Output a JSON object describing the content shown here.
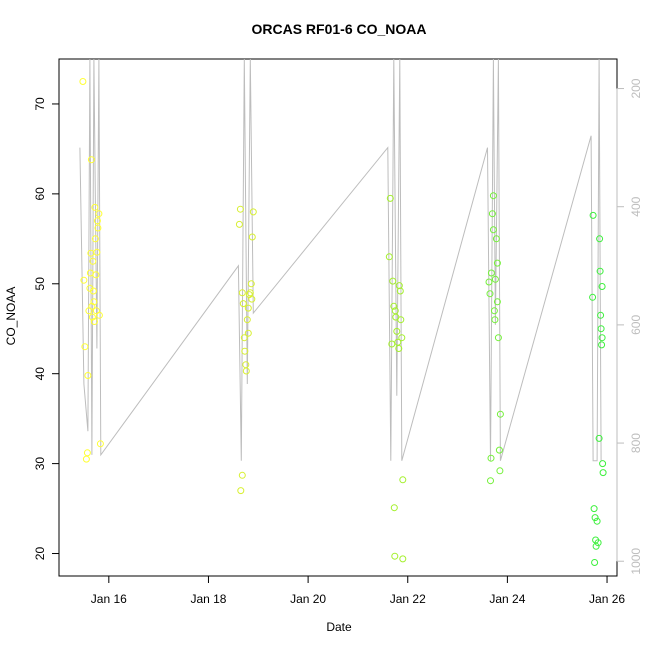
{
  "chart_data": {
    "type": "scatter",
    "title": "ORCAS RF01-6 CO_NOAA",
    "xlabel": "Date",
    "ylabel": "CO_NOAA",
    "x_ticks": [
      "Jan 16",
      "Jan 18",
      "Jan 20",
      "Jan 22",
      "Jan 24",
      "Jan 26"
    ],
    "xlim": [
      "Jan 15",
      "Jan 26.2"
    ],
    "ylim": [
      17.5,
      75
    ],
    "y_ticks": [
      20,
      30,
      40,
      50,
      60,
      70
    ],
    "right_axis": {
      "ylim": [
        1025,
        150
      ],
      "ticks": [
        200,
        400,
        600,
        800,
        1000
      ],
      "color": "#bdbdbd"
    },
    "grid": false,
    "colors": {
      "flight1": "#ffff33",
      "flight2": "#d8f032",
      "flight3": "#a4f02c",
      "flight4": "#74f03a",
      "flight5": "#3cf03c",
      "pressure_line": "#bdbdbd"
    },
    "series": [
      {
        "color": "#ffff33",
        "points": [
          [
            "Jan 15.48",
            72.5
          ],
          [
            "Jan 15.5",
            50.4
          ],
          [
            "Jan 15.52",
            43.0
          ],
          [
            "Jan 15.55",
            30.5
          ],
          [
            "Jan 15.57",
            31.2
          ],
          [
            "Jan 15.58",
            39.8
          ],
          [
            "Jan 15.6",
            47.0
          ],
          [
            "Jan 15.62",
            49.5
          ],
          [
            "Jan 15.63",
            51.2
          ],
          [
            "Jan 15.64",
            53.4
          ],
          [
            "Jan 15.65",
            63.8
          ],
          [
            "Jan 15.66",
            47.5
          ],
          [
            "Jan 15.67",
            46.3
          ],
          [
            "Jan 15.68",
            52.5
          ],
          [
            "Jan 15.69",
            49.2
          ],
          [
            "Jan 15.7",
            48.0
          ],
          [
            "Jan 15.71",
            45.8
          ],
          [
            "Jan 15.72",
            58.5
          ],
          [
            "Jan 15.73",
            55.0
          ],
          [
            "Jan 15.74",
            51.0
          ],
          [
            "Jan 15.75",
            47.0
          ],
          [
            "Jan 15.76",
            53.5
          ],
          [
            "Jan 15.77",
            57.0
          ],
          [
            "Jan 15.78",
            56.2
          ],
          [
            "Jan 15.8",
            57.8
          ],
          [
            "Jan 15.81",
            46.5
          ],
          [
            "Jan 15.83",
            32.2
          ]
        ]
      },
      {
        "color": "#d8f032",
        "points": [
          [
            "Jan 18.62",
            56.6
          ],
          [
            "Jan 18.64",
            58.3
          ],
          [
            "Jan 18.65",
            27.0
          ],
          [
            "Jan 18.68",
            28.7
          ],
          [
            "Jan 18.68",
            49.0
          ],
          [
            "Jan 18.7",
            47.8
          ],
          [
            "Jan 18.72",
            44.0
          ],
          [
            "Jan 18.73",
            42.5
          ],
          [
            "Jan 18.75",
            41.0
          ],
          [
            "Jan 18.76",
            40.3
          ],
          [
            "Jan 18.78",
            46.0
          ],
          [
            "Jan 18.8",
            47.3
          ],
          [
            "Jan 18.8",
            44.5
          ],
          [
            "Jan 18.82",
            48.8
          ],
          [
            "Jan 18.84",
            49.0
          ],
          [
            "Jan 18.86",
            50.0
          ],
          [
            "Jan 18.87",
            48.3
          ],
          [
            "Jan 18.88",
            55.2
          ],
          [
            "Jan 18.9",
            58.0
          ]
        ]
      },
      {
        "color": "#a4f02c",
        "points": [
          [
            "Jan 21.65",
            59.5
          ],
          [
            "Jan 21.63",
            53.0
          ],
          [
            "Jan 21.68",
            43.3
          ],
          [
            "Jan 21.7",
            50.3
          ],
          [
            "Jan 21.72",
            47.5
          ],
          [
            "Jan 21.73",
            25.1
          ],
          [
            "Jan 21.74",
            19.7
          ],
          [
            "Jan 21.75",
            47.0
          ],
          [
            "Jan 21.76",
            46.3
          ],
          [
            "Jan 21.78",
            44.7
          ],
          [
            "Jan 21.8",
            43.5
          ],
          [
            "Jan 21.82",
            42.8
          ],
          [
            "Jan 21.83",
            49.8
          ],
          [
            "Jan 21.85",
            49.2
          ],
          [
            "Jan 21.86",
            46.0
          ],
          [
            "Jan 21.88",
            44.0
          ],
          [
            "Jan 21.9",
            28.2
          ],
          [
            "Jan 21.9",
            19.4
          ]
        ]
      },
      {
        "color": "#74f03a",
        "points": [
          [
            "Jan 23.63",
            50.2
          ],
          [
            "Jan 23.65",
            48.9
          ],
          [
            "Jan 23.66",
            28.1
          ],
          [
            "Jan 23.67",
            30.6
          ],
          [
            "Jan 23.68",
            51.2
          ],
          [
            "Jan 23.7",
            57.8
          ],
          [
            "Jan 23.72",
            59.8
          ],
          [
            "Jan 23.72",
            56.0
          ],
          [
            "Jan 23.74",
            47.0
          ],
          [
            "Jan 23.75",
            46.0
          ],
          [
            "Jan 23.76",
            50.5
          ],
          [
            "Jan 23.78",
            55.0
          ],
          [
            "Jan 23.8",
            52.3
          ],
          [
            "Jan 23.8",
            48.0
          ],
          [
            "Jan 23.82",
            44.0
          ],
          [
            "Jan 23.84",
            31.5
          ],
          [
            "Jan 23.85",
            29.2
          ],
          [
            "Jan 23.86",
            35.5
          ]
        ]
      },
      {
        "color": "#3cf03c",
        "points": [
          [
            "Jan 25.72",
            57.6
          ],
          [
            "Jan 25.71",
            48.5
          ],
          [
            "Jan 25.74",
            25.0
          ],
          [
            "Jan 25.76",
            24.0
          ],
          [
            "Jan 25.77",
            21.5
          ],
          [
            "Jan 25.78",
            20.8
          ],
          [
            "Jan 25.75",
            19.0
          ],
          [
            "Jan 25.8",
            23.6
          ],
          [
            "Jan 25.82",
            21.2
          ],
          [
            "Jan 25.84",
            32.8
          ],
          [
            "Jan 25.85",
            55.0
          ],
          [
            "Jan 25.86",
            51.4
          ],
          [
            "Jan 25.87",
            46.5
          ],
          [
            "Jan 25.88",
            45.0
          ],
          [
            "Jan 25.89",
            43.2
          ],
          [
            "Jan 25.9",
            49.7
          ],
          [
            "Jan 25.9",
            44.0
          ],
          [
            "Jan 25.91",
            30.0
          ],
          [
            "Jan 25.92",
            29.0
          ]
        ]
      }
    ],
    "pressure_line": {
      "color": "#bdbdbd",
      "points": [
        [
          "Jan 15.42",
          300
        ],
        [
          "Jan 15.5",
          700
        ],
        [
          "Jan 15.58",
          780
        ],
        [
          "Jan 15.62",
          150
        ],
        [
          "Jan 15.66",
          820
        ],
        [
          "Jan 15.7",
          150
        ],
        [
          "Jan 15.76",
          640
        ],
        [
          "Jan 15.8",
          150
        ],
        [
          "Jan 15.84",
          820
        ],
        [
          "Jan 18.6",
          500
        ],
        [
          "Jan 18.66",
          830
        ],
        [
          "Jan 18.72",
          150
        ],
        [
          "Jan 18.78",
          700
        ],
        [
          "Jan 18.84",
          150
        ],
        [
          "Jan 18.9",
          580
        ],
        [
          "Jan 21.6",
          300
        ],
        [
          "Jan 21.66",
          830
        ],
        [
          "Jan 21.72",
          150
        ],
        [
          "Jan 21.78",
          720
        ],
        [
          "Jan 21.84",
          150
        ],
        [
          "Jan 21.88",
          830
        ],
        [
          "Jan 23.6",
          300
        ],
        [
          "Jan 23.66",
          830
        ],
        [
          "Jan 23.72",
          150
        ],
        [
          "Jan 23.76",
          600
        ],
        [
          "Jan 23.82",
          150
        ],
        [
          "Jan 23.86",
          830
        ],
        [
          "Jan 25.68",
          280
        ],
        [
          "Jan 25.72",
          830
        ],
        [
          "Jan 25.8",
          830
        ],
        [
          "Jan 25.84",
          150
        ],
        [
          "Jan 25.88",
          830
        ]
      ]
    }
  }
}
